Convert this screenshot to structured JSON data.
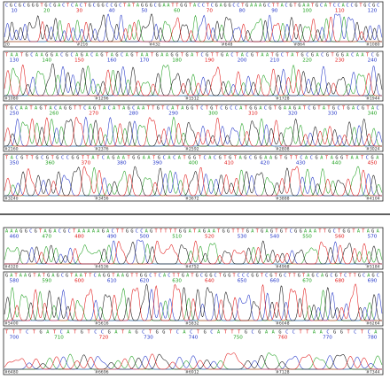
{
  "colors": {
    "A": "#1fa01f",
    "C": "#2336c8",
    "G": "#111111",
    "T": "#e01818",
    "frame": "#222222",
    "background": "#ffffff"
  },
  "chart_data": [
    {
      "type": "line",
      "title": "",
      "legend": "none",
      "series": [
        {
          "name": "A",
          "values": []
        },
        {
          "name": "C",
          "values": []
        },
        {
          "name": "G",
          "values": []
        },
        {
          "name": "T",
          "values": []
        }
      ],
      "panels": [
        {
          "sequence": "CGCGCGGGTGCGACTCACTGCGGCCGCTATAGGGCGAATTGGTACCTCGAGGCCTGAAAGCTTACGTGAATGCATCCACCGTGCGC",
          "base_ticks": [
            "10",
            "20",
            "30",
            "40",
            "50",
            "60",
            "70",
            "80",
            "90",
            "100",
            "110",
            "120"
          ],
          "sample_ticks": [
            "20",
            "#216",
            "#432",
            "#648",
            "#864",
            "#1080"
          ]
        },
        {
          "sequence": "TAATGCAAGGACGCAGACAGTAGCAGTAATGAAGGTGATCGTTGACTACGTAATGCTATGCGACGTGGACAATCG",
          "base_ticks": [
            "130",
            "140",
            "150",
            "160",
            "170",
            "180",
            "190",
            "200",
            "210",
            "220",
            "230",
            "240"
          ],
          "sample_ticks": [
            "#1080",
            "#1296",
            "#1512",
            "#1728",
            "#1944"
          ]
        },
        {
          "sequence": "TGCAATAGTACAGGTTCAGTACATAGCAATTGTCATAGGTCTGTCGCCATGGACGTGAAGATCGTATGCTGACGTAC",
          "base_ticks": [
            "250",
            "260",
            "270",
            "280",
            "290",
            "300",
            "310",
            "320",
            "330",
            "340"
          ],
          "sample_ticks": [
            "#2160",
            "#2376",
            "#2592",
            "#2808",
            "#3024"
          ]
        },
        {
          "sequence": "TACGTTGCGTGCCGGTTATCAGAATGGAATGCACATGGTCACGTGTAGCGGAAGTGTTCACGATAGGTAATCGA",
          "base_ticks": [
            "350",
            "360",
            "370",
            "380",
            "390",
            "400",
            "410",
            "420",
            "430",
            "440",
            "450"
          ],
          "sample_ticks": [
            "#3240",
            "#3456",
            "#3672",
            "#3888",
            "#4104"
          ]
        },
        {
          "sequence": "AAAGGCGTAGACGCTAAAAAGACTTGGCCAGTTTTTGGATAGAATGGTTTGATGAGTGTCGGAAATTGCTGGTATAGA",
          "base_ticks": [
            "460",
            "470",
            "480",
            "490",
            "500",
            "510",
            "520",
            "530",
            "540",
            "550",
            "560",
            "570"
          ],
          "sample_ticks": [
            "#4320",
            "#4536",
            "#4752",
            "#4968",
            "#5184"
          ]
        },
        {
          "sequence": "GATAAGTATGAGCGTAATTCAGGTAAGTTGGCTCACTTGATGCGGCTGGTCCCGGTCGTGCTTGTAGCAGCGTCTTGCAGC",
          "base_ticks": [
            "580",
            "590",
            "600",
            "610",
            "620",
            "630",
            "640",
            "650",
            "660",
            "670",
            "680",
            "690"
          ],
          "sample_ticks": [
            "#5400",
            "#5616",
            "#5832",
            "#6048",
            "#6264"
          ]
        },
        {
          "sequence": "TTTCTGATCATGTCCGATAGCTGGTCACTGCATTTGCGAAGCCTTAACGGTCTCA",
          "base_ticks": [
            "700",
            "710",
            "720",
            "730",
            "740",
            "750",
            "760",
            "770",
            "780"
          ],
          "sample_ticks": [
            "#6480",
            "#6696",
            "#6912",
            "#7128",
            "#7344"
          ]
        }
      ]
    }
  ]
}
